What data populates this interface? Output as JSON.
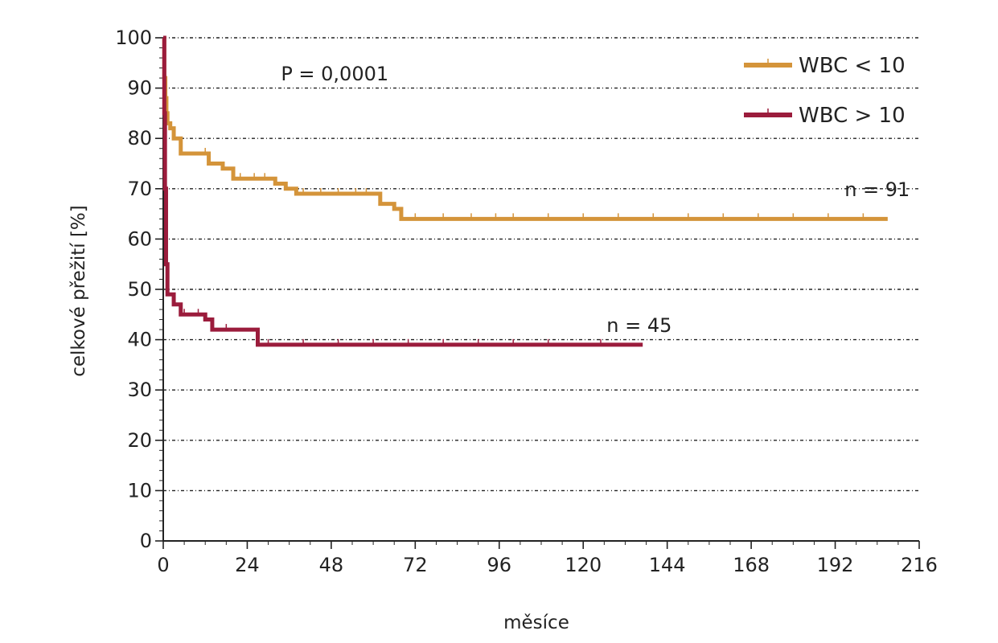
{
  "chart_data": {
    "type": "line",
    "xlabel": "měsíce",
    "ylabel": "celkové přežití [%]",
    "xlim": [
      0,
      216
    ],
    "ylim": [
      0,
      100
    ],
    "x_ticks": [
      "0",
      "24",
      "48",
      "72",
      "96",
      "120",
      "144",
      "168",
      "192",
      "216"
    ],
    "y_ticks": [
      "0",
      "10",
      "20",
      "30",
      "40",
      "50",
      "60",
      "70",
      "80",
      "90",
      "100"
    ],
    "grid": "horizontal dotted",
    "legend_position": "top-right",
    "annotations": [
      {
        "text": "P = 0,0001",
        "x": 49,
        "y": 91.5
      },
      {
        "text": "n = 91",
        "x": 204,
        "y": 68.5
      },
      {
        "text": "n = 45",
        "x": 136,
        "y": 41.5
      }
    ],
    "series": [
      {
        "name": "WBC < 10",
        "color": "#D4943A",
        "x": [
          0,
          0.3,
          0.6,
          0.9,
          1.2,
          2,
          3,
          5,
          10,
          13,
          17,
          20,
          30,
          32,
          35,
          38,
          50,
          60,
          62,
          66,
          68,
          207
        ],
        "y": [
          100,
          92,
          88,
          85,
          83,
          82,
          80,
          77,
          77,
          75,
          74,
          72,
          72,
          71,
          70,
          69,
          69,
          69,
          67,
          66,
          64,
          64
        ],
        "censor_x": [
          12,
          22,
          26,
          29,
          40,
          45,
          50,
          55,
          58,
          72,
          80,
          88,
          95,
          100,
          110,
          120,
          130,
          140,
          150,
          160,
          170,
          180,
          190,
          200
        ]
      },
      {
        "name": "WBC > 10",
        "color": "#9B1C3C",
        "x": [
          0,
          0.3,
          0.5,
          0.8,
          1.2,
          3,
          5,
          8,
          12,
          14,
          24,
          27,
          137
        ],
        "y": [
          100,
          85,
          70,
          55,
          49,
          47,
          45,
          45,
          44,
          42,
          42,
          39,
          39
        ],
        "censor_x": [
          6,
          10,
          18,
          30,
          40,
          50,
          60,
          70,
          80,
          90,
          100,
          110,
          125
        ]
      }
    ]
  }
}
